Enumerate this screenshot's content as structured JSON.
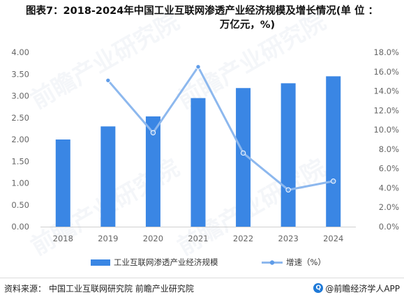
{
  "title": {
    "line1": "图表7：2018-2024年中国工业互联网渗透产业经济规模及增长情况(单 位 ：",
    "line2": "万亿元，%)"
  },
  "colors": {
    "bar": "#3a86e4",
    "line": "#8db8ee",
    "point": "#5f9ce8"
  },
  "chart_data": {
    "type": "bar",
    "categories": [
      "2018",
      "2019",
      "2020",
      "2021",
      "2022",
      "2023",
      "2024"
    ],
    "series": [
      {
        "name": "工业互联网渗透产业经济规模",
        "type": "bar",
        "axis": "left",
        "values": [
          2.0,
          2.3,
          2.53,
          2.95,
          3.18,
          3.29,
          3.45
        ]
      },
      {
        "name": "增速（%）",
        "type": "line",
        "axis": "right",
        "values": [
          null,
          15.1,
          9.7,
          16.5,
          7.6,
          3.8,
          4.7
        ]
      }
    ],
    "y_left": {
      "min": 0,
      "max": 4.0,
      "step": 0.5,
      "ticks": [
        "0.00",
        "0.50",
        "1.00",
        "1.50",
        "2.00",
        "2.50",
        "3.00",
        "3.50",
        "4.00"
      ]
    },
    "y_right": {
      "min": 0,
      "max": 18,
      "step": 2,
      "ticks": [
        "0.0%",
        "2.0%",
        "4.0%",
        "6.0%",
        "8.0%",
        "10.0%",
        "12.0%",
        "14.0%",
        "16.0%",
        "18.0%"
      ]
    },
    "legend_position": "bottom",
    "grid": false
  },
  "watermark": "前瞻产业研究院",
  "footer": {
    "source_label": "资料来源：",
    "source_text": "中国工业互联网研究院 前瞻产业研究院",
    "brand": "@前瞻经济学人APP",
    "brand_icon": "q-logo-icon"
  }
}
